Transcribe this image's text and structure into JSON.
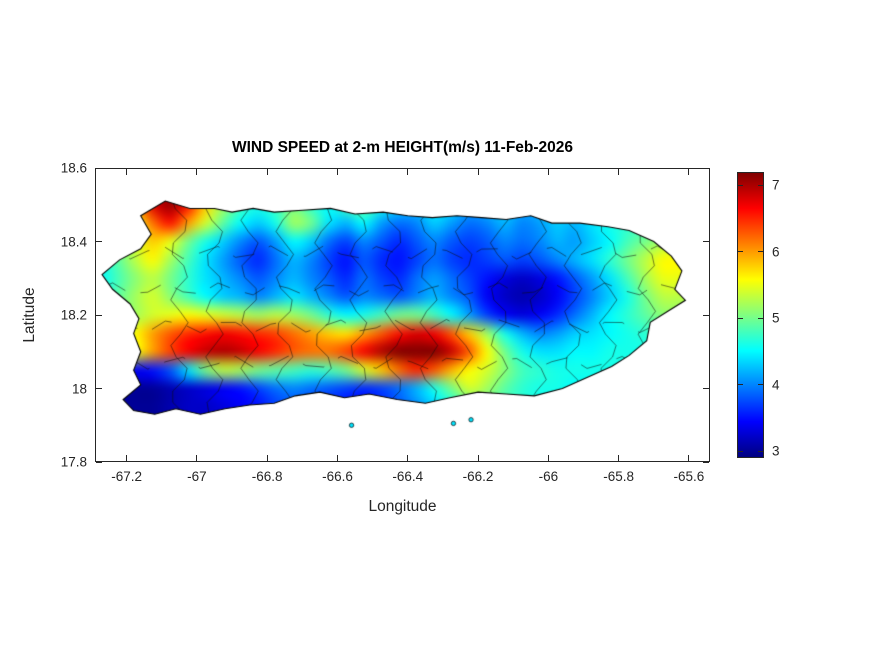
{
  "figure": {
    "title": "WIND SPEED at 2-m HEIGHT(m/s) 11-Feb-2026",
    "xlabel": "Longitude",
    "ylabel": "Latitude"
  },
  "chart_data": {
    "type": "heatmap",
    "title": "WIND SPEED at 2-m HEIGHT(m/s) 11-Feb-2026",
    "xlabel": "Longitude",
    "ylabel": "Latitude",
    "xlim": [
      -67.29,
      -65.54
    ],
    "ylim": [
      17.8,
      18.6
    ],
    "x_ticks": [
      -67.2,
      -67,
      -66.8,
      -66.6,
      -66.4,
      -66.2,
      -66,
      -65.8,
      -65.6
    ],
    "x_tick_labels": [
      "-67.2",
      "-67",
      "-66.8",
      "-66.6",
      "-66.4",
      "-66.2",
      "-66",
      "-65.8",
      "-65.6"
    ],
    "y_ticks": [
      17.8,
      18,
      18.2,
      18.4,
      18.6
    ],
    "y_tick_labels": [
      "17.8",
      "18",
      "18.2",
      "18.4",
      "18.6"
    ],
    "colorbar": {
      "min": 2.9,
      "max": 7.2,
      "ticks": [
        3,
        4,
        5,
        6,
        7
      ],
      "tick_labels": [
        "3",
        "4",
        "5",
        "6",
        "7"
      ],
      "colormap": "jet"
    },
    "grid": {
      "lon_start": -67.275,
      "lon_step": 0.05,
      "lat_start": 18.5,
      "lat_step": -0.05,
      "values": [
        [
          5,
          5,
          6,
          6.8,
          7.1,
          6.6,
          5.8,
          5.2,
          4.8,
          4.6,
          4.8,
          5,
          4.7,
          4.5,
          4.8,
          5,
          4.6,
          4.4,
          4.3,
          4.5,
          4.4,
          4.2,
          4.3,
          4.4,
          4.2,
          4.3,
          4.5,
          4.4,
          4.3,
          4.5,
          4.6,
          4.7,
          4.8,
          4.8
        ],
        [
          5,
          5.2,
          5.5,
          6.2,
          6.6,
          6,
          5.4,
          4.9,
          4.5,
          4.3,
          4.6,
          5.2,
          5,
          4.4,
          4.2,
          4.5,
          4.1,
          3.9,
          4,
          4.3,
          4.1,
          3.9,
          4,
          4.2,
          4,
          4.1,
          4.3,
          4.2,
          4.4,
          4.6,
          4.7,
          4.8,
          4.9,
          5
        ],
        [
          4.8,
          5,
          5.4,
          5.8,
          5.5,
          5,
          4.6,
          4.3,
          4,
          3.8,
          4.1,
          4.5,
          4.3,
          3.9,
          3.7,
          4,
          3.8,
          3.6,
          3.8,
          4,
          3.8,
          3.7,
          3.8,
          4,
          3.9,
          4,
          4.2,
          4.1,
          4.3,
          4.5,
          4.8,
          5,
          5.2,
          5.3
        ],
        [
          4.6,
          4.9,
          5.3,
          5.6,
          5.2,
          4.8,
          4.4,
          4.1,
          3.8,
          3.6,
          3.9,
          4.2,
          4,
          3.7,
          3.5,
          3.8,
          3.6,
          3.5,
          3.7,
          3.9,
          3.7,
          3.6,
          3.7,
          3.8,
          3.7,
          3.8,
          4,
          4.2,
          4.4,
          4.7,
          5,
          5.3,
          5.6,
          5.6
        ],
        [
          4.5,
          4.8,
          5.1,
          5.3,
          5,
          4.7,
          4.4,
          4.2,
          4,
          3.8,
          4,
          4.2,
          4,
          3.8,
          3.6,
          3.9,
          3.7,
          3.6,
          3.9,
          4.1,
          3.9,
          3.7,
          3.5,
          3.3,
          3.2,
          3.3,
          3.5,
          3.8,
          4.1,
          4.4,
          4.8,
          5.2,
          5.5,
          5.5
        ],
        [
          4.6,
          4.9,
          5.2,
          5.4,
          5.1,
          4.8,
          4.5,
          4.3,
          4.2,
          4,
          4.2,
          4.4,
          4.2,
          4,
          3.8,
          4,
          3.9,
          3.8,
          4,
          4.2,
          4,
          3.8,
          3.4,
          3.2,
          3.1,
          3.2,
          3.4,
          3.7,
          4,
          4.3,
          4.6,
          5,
          5.3,
          5.3
        ],
        [
          4.7,
          5,
          5.2,
          5.4,
          5.5,
          5.6,
          5.5,
          5.4,
          5.3,
          5.2,
          5.3,
          5.2,
          5,
          4.7,
          4.5,
          4.6,
          4.8,
          5,
          5,
          4.8,
          4.5,
          4.1,
          3.7,
          3.4,
          3.3,
          3.4,
          3.6,
          3.9,
          4.2,
          4.5,
          4.7,
          4.9,
          5.1,
          5.1
        ],
        [
          4.8,
          5.2,
          5.6,
          6,
          6.3,
          6.5,
          6.6,
          6.7,
          6.6,
          6.5,
          6.4,
          6.2,
          6,
          5.8,
          5.7,
          6,
          6.3,
          6.6,
          6.8,
          6.7,
          6.3,
          5.8,
          5.2,
          4.6,
          4.2,
          4,
          4.1,
          4.3,
          4.4,
          4.5,
          4.6,
          4.7,
          4.8,
          4.8
        ],
        [
          4.6,
          5,
          5.5,
          6,
          6.4,
          6.7,
          6.9,
          7,
          6.9,
          6.7,
          6.5,
          6.3,
          6.2,
          6.2,
          6.4,
          6.7,
          7,
          7.2,
          7.4,
          7.3,
          6.9,
          6.3,
          5.6,
          5,
          4.6,
          4.4,
          4.4,
          4.5,
          4.5,
          4.6,
          4.6,
          4.6,
          4.7,
          4.7
        ],
        [
          3.6,
          3.5,
          3.4,
          3.5,
          3.8,
          4.4,
          5,
          5.3,
          5.2,
          5,
          4.9,
          4.8,
          4.7,
          4.8,
          5,
          5.4,
          5.8,
          6.2,
          6.5,
          6.3,
          5.9,
          5.6,
          5.4,
          5.1,
          4.8,
          4.7,
          4.6,
          4.6,
          4.6,
          4.6,
          4.6,
          4.5,
          4.5,
          4.5
        ],
        [
          3.2,
          3.1,
          3,
          3,
          3.1,
          3.2,
          3.3,
          3.4,
          3.5,
          3.7,
          3.9,
          4,
          3.9,
          3.8,
          3.7,
          3.6,
          3.7,
          3.9,
          4.2,
          4.6,
          5,
          5.4,
          5.2,
          4.9,
          4.7,
          4.6,
          4.6,
          4.5,
          4.5,
          4.4,
          4.4,
          4.3,
          4.3,
          4.3
        ],
        [
          3.1,
          3,
          3,
          3,
          3.1,
          3.2,
          3.2,
          3.3,
          3.4,
          3.5,
          3.7,
          3.8,
          3.7,
          3.6,
          3.5,
          3.5,
          3.6,
          3.8,
          4,
          4.3,
          4.6,
          4.8,
          4.9,
          4.8,
          4.7,
          4.6,
          4.5,
          4.5,
          4.4,
          4.4,
          4.3,
          4.3,
          4.2,
          4.2
        ]
      ]
    },
    "island_outline": [
      [
        -67.13,
        18.42
      ],
      [
        -67.16,
        18.47
      ],
      [
        -67.09,
        18.51
      ],
      [
        -67.02,
        18.49
      ],
      [
        -66.95,
        18.49
      ],
      [
        -66.9,
        18.48
      ],
      [
        -66.84,
        18.49
      ],
      [
        -66.78,
        18.48
      ],
      [
        -66.7,
        18.485
      ],
      [
        -66.62,
        18.49
      ],
      [
        -66.55,
        18.475
      ],
      [
        -66.47,
        18.48
      ],
      [
        -66.4,
        18.47
      ],
      [
        -66.33,
        18.465
      ],
      [
        -66.26,
        18.47
      ],
      [
        -66.19,
        18.465
      ],
      [
        -66.12,
        18.46
      ],
      [
        -66.05,
        18.47
      ],
      [
        -65.99,
        18.45
      ],
      [
        -65.91,
        18.45
      ],
      [
        -65.83,
        18.44
      ],
      [
        -65.77,
        18.43
      ],
      [
        -65.7,
        18.4
      ],
      [
        -65.65,
        18.36
      ],
      [
        -65.62,
        18.32
      ],
      [
        -65.64,
        18.27
      ],
      [
        -65.61,
        18.24
      ],
      [
        -65.66,
        18.21
      ],
      [
        -65.71,
        18.18
      ],
      [
        -65.72,
        18.13
      ],
      [
        -65.77,
        18.09
      ],
      [
        -65.82,
        18.06
      ],
      [
        -65.89,
        18.03
      ],
      [
        -65.96,
        18.0
      ],
      [
        -66.04,
        17.98
      ],
      [
        -66.12,
        17.985
      ],
      [
        -66.2,
        17.99
      ],
      [
        -66.28,
        17.975
      ],
      [
        -66.35,
        17.96
      ],
      [
        -66.43,
        17.97
      ],
      [
        -66.51,
        17.985
      ],
      [
        -66.58,
        17.975
      ],
      [
        -66.65,
        17.99
      ],
      [
        -66.72,
        17.98
      ],
      [
        -66.78,
        17.96
      ],
      [
        -66.85,
        17.955
      ],
      [
        -66.92,
        17.945
      ],
      [
        -66.99,
        17.93
      ],
      [
        -67.06,
        17.945
      ],
      [
        -67.12,
        17.93
      ],
      [
        -67.18,
        17.94
      ],
      [
        -67.21,
        17.97
      ],
      [
        -67.16,
        18.01
      ],
      [
        -67.18,
        18.05
      ],
      [
        -67.16,
        18.1
      ],
      [
        -67.18,
        18.15
      ],
      [
        -67.165,
        18.19
      ],
      [
        -67.19,
        18.23
      ],
      [
        -67.24,
        18.27
      ],
      [
        -67.27,
        18.31
      ],
      [
        -67.22,
        18.35
      ],
      [
        -67.16,
        18.38
      ]
    ],
    "boundary_longitudes": [
      -67.05,
      -66.95,
      -66.85,
      -66.75,
      -66.64,
      -66.54,
      -66.44,
      -66.34,
      -66.24,
      -66.14,
      -66.03,
      -65.93,
      -65.83,
      -65.72
    ],
    "boundary_latitudes": [
      18.07,
      18.17,
      18.27,
      18.37
    ],
    "islets": [
      [
        -66.56,
        17.9
      ],
      [
        -66.27,
        17.905
      ],
      [
        -66.22,
        17.915
      ]
    ]
  }
}
